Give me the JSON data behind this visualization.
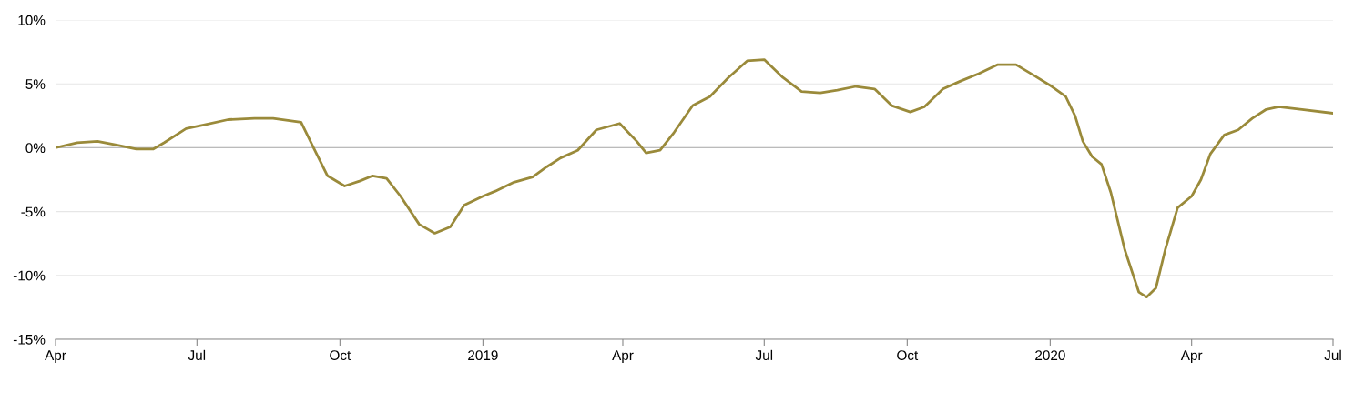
{
  "chart_data": {
    "type": "line",
    "x": [
      "2018-04-01",
      "2018-04-15",
      "2018-04-28",
      "2018-05-11",
      "2018-05-23",
      "2018-06-03",
      "2018-06-10",
      "2018-06-24",
      "2018-07-06",
      "2018-07-21",
      "2018-08-07",
      "2018-08-19",
      "2018-09-06",
      "2018-09-14",
      "2018-09-23",
      "2018-10-04",
      "2018-10-14",
      "2018-10-22",
      "2018-10-31",
      "2018-11-09",
      "2018-11-21",
      "2018-12-01",
      "2018-12-11",
      "2018-12-20",
      "2019-01-01",
      "2019-01-09",
      "2019-01-21",
      "2019-02-02",
      "2019-02-11",
      "2019-02-20",
      "2019-03-03",
      "2019-03-15",
      "2019-03-30",
      "2019-04-10",
      "2019-04-16",
      "2019-04-25",
      "2019-05-04",
      "2019-05-16",
      "2019-05-27",
      "2019-06-08",
      "2019-06-20",
      "2019-07-01",
      "2019-07-13",
      "2019-07-25",
      "2019-08-06",
      "2019-08-17",
      "2019-08-29",
      "2019-09-10",
      "2019-09-21",
      "2019-10-03",
      "2019-10-12",
      "2019-10-24",
      "2019-11-04",
      "2019-11-16",
      "2019-11-28",
      "2019-12-10",
      "2019-12-21",
      "2020-01-02",
      "2020-01-11",
      "2020-01-17",
      "2020-01-22",
      "2020-01-28",
      "2020-02-03",
      "2020-02-09",
      "2020-02-18",
      "2020-02-27",
      "2020-03-03",
      "2020-03-09",
      "2020-03-15",
      "2020-03-23",
      "2020-04-01",
      "2020-04-07",
      "2020-04-13",
      "2020-04-22",
      "2020-05-01",
      "2020-05-10",
      "2020-05-19",
      "2020-05-27",
      "2020-06-11",
      "2020-07-01"
    ],
    "series": [
      {
        "color": "#9a8a3a",
        "values": [
          0,
          0.4,
          0.5,
          0.2,
          -0.1,
          -0.1,
          0.4,
          1.5,
          1.8,
          2.2,
          2.3,
          2.3,
          2.0,
          0,
          -2.2,
          -3.0,
          -2.6,
          -2.2,
          -2.4,
          -3.8,
          -6.0,
          -6.7,
          -6.2,
          -4.5,
          -3.8,
          -3.4,
          -2.7,
          -2.3,
          -1.5,
          -0.8,
          -0.2,
          1.4,
          1.9,
          0.5,
          -0.4,
          -0.2,
          1.2,
          3.3,
          4.0,
          5.5,
          6.8,
          6.9,
          5.5,
          4.4,
          4.3,
          4.5,
          4.8,
          4.6,
          3.3,
          2.8,
          3.2,
          4.6,
          5.2,
          5.8,
          6.5,
          6.5,
          5.7,
          4.8,
          4.0,
          2.5,
          0.5,
          -0.7,
          -1.3,
          -3.5,
          -8.0,
          -11.3,
          -11.7,
          -11.0,
          -8.0,
          -4.7,
          -3.8,
          -2.5,
          -0.5,
          1.0,
          1.4,
          2.3,
          3.0,
          3.2,
          3.0,
          2.7
        ]
      }
    ],
    "xlim": [
      "2018-04-01",
      "2020-07-01"
    ],
    "xticks": [
      {
        "value": "2018-04-01",
        "label": "Apr"
      },
      {
        "value": "2018-07-01",
        "label": "Jul"
      },
      {
        "value": "2018-10-01",
        "label": "Oct"
      },
      {
        "value": "2019-01-01",
        "label": "2019"
      },
      {
        "value": "2019-04-01",
        "label": "Apr"
      },
      {
        "value": "2019-07-01",
        "label": "Jul"
      },
      {
        "value": "2019-10-01",
        "label": "Oct"
      },
      {
        "value": "2020-01-01",
        "label": "2020"
      },
      {
        "value": "2020-04-01",
        "label": "Apr"
      },
      {
        "value": "2020-07-01",
        "label": "Jul"
      }
    ],
    "ylim": [
      -15,
      10
    ],
    "yticks": [
      {
        "value": -15,
        "label": "-15%"
      },
      {
        "value": -10,
        "label": "-10%"
      },
      {
        "value": -5,
        "label": "-5%"
      },
      {
        "value": 0,
        "label": "0%"
      },
      {
        "value": 5,
        "label": "5%"
      },
      {
        "value": 10,
        "label": "10%"
      }
    ],
    "ref_lines": [
      {
        "axis": "y",
        "value": 0,
        "color": "#bbbbbb"
      }
    ],
    "grid": "y",
    "line_style": "solid",
    "marker": "none"
  }
}
